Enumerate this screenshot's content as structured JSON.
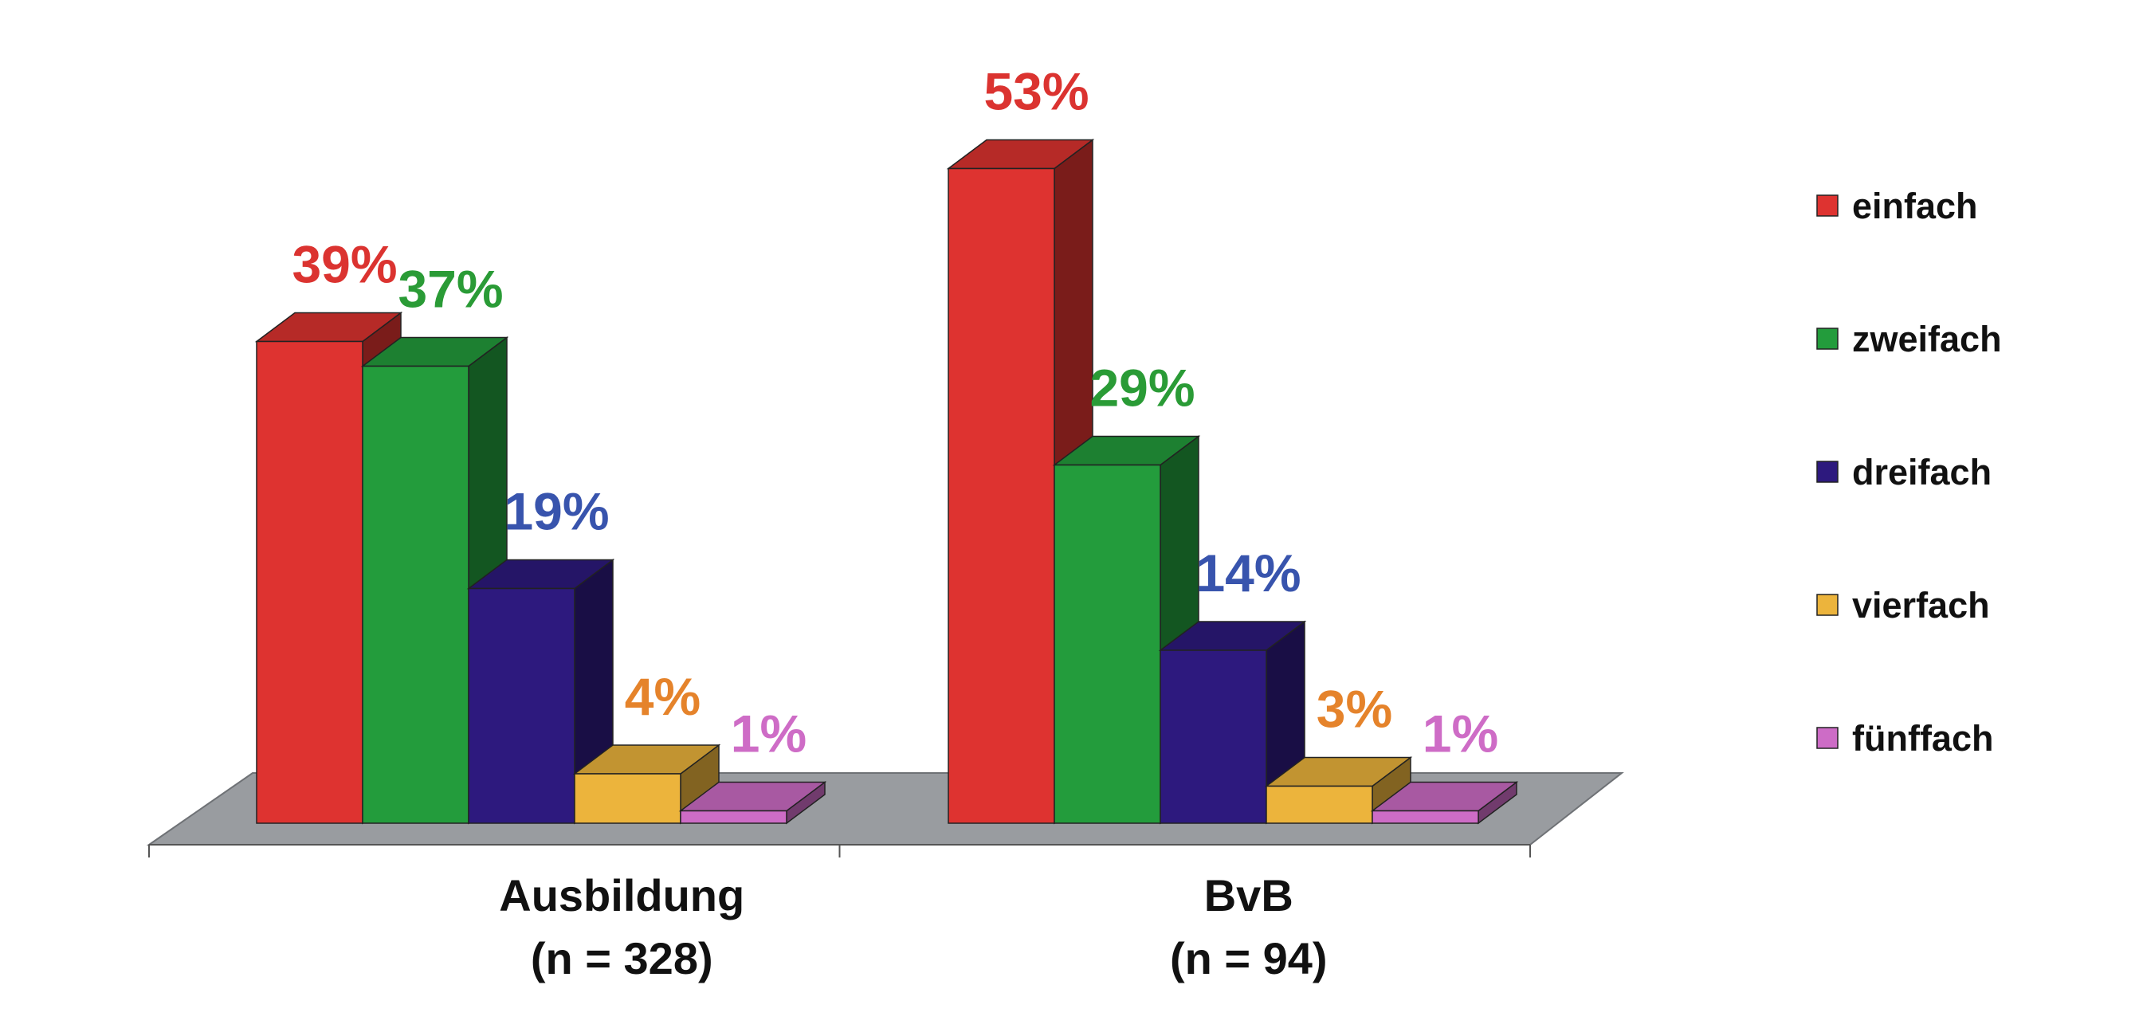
{
  "chart_data": {
    "type": "bar",
    "categories": [
      "Ausbildung",
      "BvB"
    ],
    "category_sublabels": [
      "(n = 328)",
      "(n = 94)"
    ],
    "series": [
      {
        "name": "einfach",
        "values": [
          39,
          53
        ],
        "labels": [
          "39%",
          "53%"
        ],
        "color": "#de3330",
        "label_color": "#db3330"
      },
      {
        "name": "zweifach",
        "values": [
          37,
          29
        ],
        "labels": [
          "37%",
          "29%"
        ],
        "color": "#239c3c",
        "label_color": "#2a9b36"
      },
      {
        "name": "dreifach",
        "values": [
          19,
          14
        ],
        "labels": [
          "19%",
          "14%"
        ],
        "color": "#2d197e",
        "label_color": "#3854ad"
      },
      {
        "name": "vierfach",
        "values": [
          4,
          3
        ],
        "labels": [
          "4%",
          "3%"
        ],
        "color": "#ecb43c",
        "label_color": "#e5832b"
      },
      {
        "name": "fünffach",
        "values": [
          1,
          1
        ],
        "labels": [
          "1%",
          "1%"
        ],
        "color": "#cd6cc6",
        "label_color": "#ce6cc6"
      }
    ],
    "ylim": [
      0,
      60
    ],
    "legend_position": "right",
    "grid": false,
    "three_d": true,
    "floor_color": "#999ca0"
  }
}
